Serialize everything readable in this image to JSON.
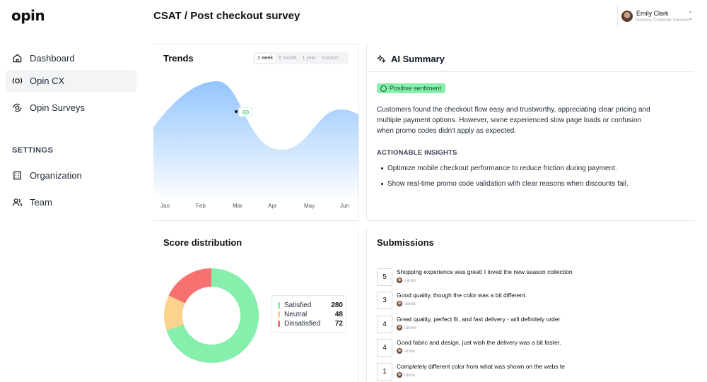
{
  "brand": {
    "logo": "opin"
  },
  "sidebar": {
    "items": [
      {
        "label": "Dashboard",
        "icon": "home-icon"
      },
      {
        "label": "Opin CX",
        "icon": "cx-icon",
        "active": true
      },
      {
        "label": "Opin Surveys",
        "icon": "surveys-icon"
      }
    ],
    "settings_heading": "SETTINGS",
    "settings_items": [
      {
        "label": "Organization",
        "icon": "building-icon"
      },
      {
        "label": "Team",
        "icon": "users-icon"
      }
    ]
  },
  "header": {
    "title": "CSAT / Post checkout survey",
    "user": {
      "name": "Emily Clark",
      "role": "Director, Customer Success"
    }
  },
  "trends": {
    "title": "Trends",
    "ranges": [
      "1 week",
      "6 month",
      "1 year",
      "Custom"
    ],
    "active_range": "1 week",
    "tooltip_value": "80",
    "months": [
      "Jan",
      "Feb",
      "Mar",
      "Apr",
      "May",
      "Jun"
    ]
  },
  "ai_summary": {
    "title": "AI Summary",
    "sentiment": "Positive sentiment",
    "summary_lines": [
      "Customers found the checkout flow easy and trustworthy, appreciating clear pricing and",
      "multiple payment options. However, some experienced slow page loads or confusion",
      "when promo codes didn't apply as expected."
    ],
    "insights_heading": "ACTIONABLE INSIGHTS",
    "insights": [
      "Optimize mobile checkout performance to reduce friction during payment.",
      "Show real-time promo code validation with clear reasons when discounts fail."
    ]
  },
  "score_distribution": {
    "title": "Score distribution",
    "colors": {
      "satisfied": "#86efac",
      "neutral": "#fcd38d",
      "dissatisfied": "#f87171"
    },
    "segments": [
      {
        "label": "Satisfied",
        "value": 280
      },
      {
        "label": "Neutral",
        "value": 48
      },
      {
        "label": "Dissatisfied",
        "value": 72
      }
    ]
  },
  "submissions": {
    "title": "Submissions",
    "rows": [
      {
        "score": "5",
        "text": "Shopping experience was great! I loved the new season collection",
        "user": "sarah"
      },
      {
        "score": "3",
        "text": "Good quality, though the color was a bit different.",
        "user": "david"
      },
      {
        "score": "4",
        "text": "Great quality, perfect fit, and fast delivery - will definitely order",
        "user": "james"
      },
      {
        "score": "4",
        "text": "Good fabric and design, just wish the delivery was a bit faster.",
        "user": "emily"
      },
      {
        "score": "1",
        "text": "Completely different color from what was shown on the webs te",
        "user": "olivia"
      }
    ]
  }
}
